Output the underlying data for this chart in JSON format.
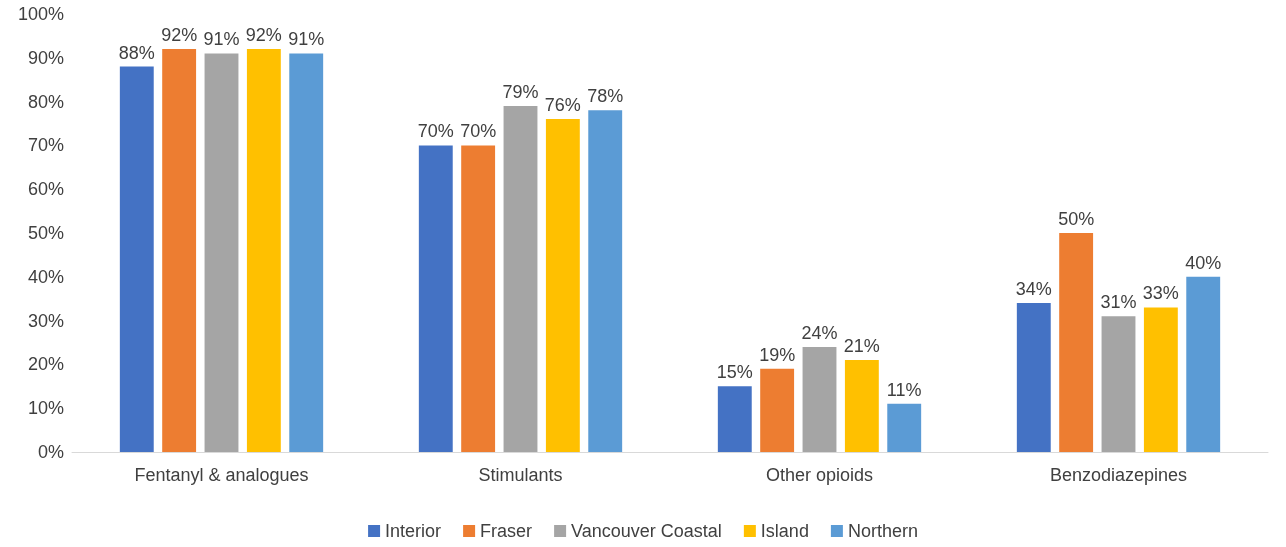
{
  "chart_data": {
    "type": "bar",
    "categories": [
      "Fentanyl & analogues",
      "Stimulants",
      "Other opioids",
      "Benzodiazepines"
    ],
    "series": [
      {
        "name": "Interior",
        "color": "#4472c4",
        "values": [
          88,
          70,
          15,
          34
        ],
        "value_labels": [
          "88%",
          "70%",
          "15%",
          "34%"
        ]
      },
      {
        "name": "Fraser",
        "color": "#ed7d31",
        "values": [
          92,
          70,
          19,
          50
        ],
        "value_labels": [
          "92%",
          "70%",
          "19%",
          "50%"
        ]
      },
      {
        "name": "Vancouver Coastal",
        "color": "#a5a5a5",
        "values": [
          91,
          79,
          24,
          31
        ],
        "value_labels": [
          "91%",
          "79%",
          "24%",
          "31%"
        ]
      },
      {
        "name": "Island",
        "color": "#ffc000",
        "values": [
          92,
          76,
          21,
          33
        ],
        "value_labels": [
          "92%",
          "76%",
          "21%",
          "33%"
        ]
      },
      {
        "name": "Northern",
        "color": "#5b9bd5",
        "values": [
          91,
          78,
          11,
          40
        ],
        "value_labels": [
          "91%",
          "78%",
          "11%",
          "40%"
        ]
      }
    ],
    "ylim": [
      0,
      100
    ],
    "yticks": [
      {
        "value": 0,
        "label": "0%"
      },
      {
        "value": 10,
        "label": "10%"
      },
      {
        "value": 20,
        "label": "20%"
      },
      {
        "value": 30,
        "label": "30%"
      },
      {
        "value": 40,
        "label": "40%"
      },
      {
        "value": 50,
        "label": "50%"
      },
      {
        "value": 60,
        "label": "60%"
      },
      {
        "value": 70,
        "label": "70%"
      },
      {
        "value": 80,
        "label": "80%"
      },
      {
        "value": 90,
        "label": "90%"
      },
      {
        "value": 100,
        "label": "100%"
      }
    ],
    "grid": false,
    "legend": "bottom"
  }
}
